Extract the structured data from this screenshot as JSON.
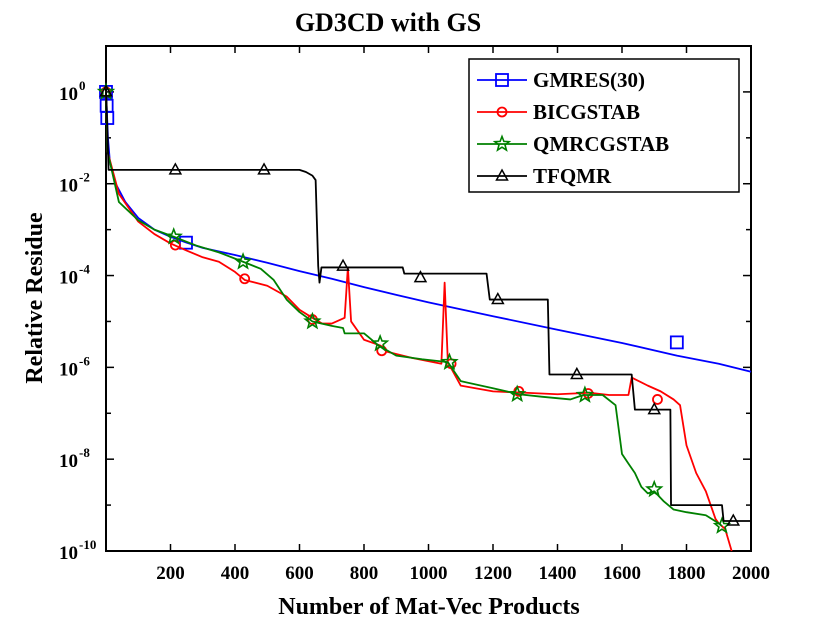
{
  "chart_data": {
    "type": "line",
    "title": "GD3CD with GS",
    "xlabel": "Number of Mat-Vec Products",
    "ylabel": "Relative Residue",
    "xlim": [
      0,
      2000
    ],
    "ylim_log10": [
      -10,
      1
    ],
    "y_scale": "log",
    "grid": false,
    "legend_position": "top-right",
    "x_ticks": [
      200,
      400,
      600,
      800,
      1000,
      1200,
      1400,
      1600,
      1800,
      2000
    ],
    "x_tick_labels": [
      "200",
      "400",
      "600",
      "800",
      "1000",
      "1200",
      "1400",
      "1600",
      "1800",
      "2000"
    ],
    "y_ticks": [
      {
        "base": "10",
        "exp": "0",
        "value": 1
      },
      {
        "base": "10",
        "exp": "-2",
        "value": 0.01
      },
      {
        "base": "10",
        "exp": "-4",
        "value": 0.0001
      },
      {
        "base": "10",
        "exp": "-6",
        "value": 1e-06
      },
      {
        "base": "10",
        "exp": "-8",
        "value": 1e-08
      },
      {
        "base": "10",
        "exp": "-10",
        "value": 1e-10
      }
    ],
    "series": [
      {
        "name": "GMRES(30)",
        "color": "#0000ff",
        "marker": "square",
        "points": [
          [
            0,
            1
          ],
          [
            2,
            0.5
          ],
          [
            6,
            0.1
          ],
          [
            12,
            0.03
          ],
          [
            30,
            0.01
          ],
          [
            60,
            0.004
          ],
          [
            100,
            0.0018
          ],
          [
            150,
            0.001
          ],
          [
            200,
            0.0007
          ],
          [
            250,
            0.00052
          ],
          [
            300,
            0.0004
          ],
          [
            400,
            0.00028
          ],
          [
            500,
            0.00019
          ],
          [
            600,
            0.000125
          ],
          [
            700,
            8.5e-05
          ],
          [
            800,
            5.6e-05
          ],
          [
            900,
            3.8e-05
          ],
          [
            1000,
            2.6e-05
          ],
          [
            1200,
            1.3e-05
          ],
          [
            1400,
            6.6e-06
          ],
          [
            1600,
            3.4e-06
          ],
          [
            1770,
            1.8e-06
          ],
          [
            1900,
            1.2e-06
          ],
          [
            2000,
            8e-07
          ]
        ],
        "markers": [
          [
            0,
            1
          ],
          [
            2,
            0.5
          ],
          [
            4,
            0.27
          ],
          [
            248,
            0.00052
          ],
          [
            1770,
            3.5e-06
          ]
        ]
      },
      {
        "name": "BICGSTAB",
        "color": "#ff0000",
        "marker": "circle",
        "points": [
          [
            0,
            1
          ],
          [
            5,
            0.05
          ],
          [
            40,
            0.006
          ],
          [
            100,
            0.0015
          ],
          [
            150,
            0.0008
          ],
          [
            200,
            0.0005
          ],
          [
            250,
            0.00035
          ],
          [
            300,
            0.00025
          ],
          [
            350,
            0.0002
          ],
          [
            400,
            0.00012
          ],
          [
            430,
            8e-05
          ],
          [
            500,
            6e-05
          ],
          [
            560,
            3.5e-05
          ],
          [
            600,
            1.8e-05
          ],
          [
            640,
            1.2e-05
          ],
          [
            670,
            9e-06
          ],
          [
            700,
            9e-06
          ],
          [
            740,
            1.2e-05
          ],
          [
            750,
            0.00015
          ],
          [
            760,
            1e-05
          ],
          [
            800,
            4e-06
          ],
          [
            850,
            3e-06
          ],
          [
            870,
            2.2e-06
          ],
          [
            950,
            1.6e-06
          ],
          [
            1040,
            1.2e-06
          ],
          [
            1050,
            7e-05
          ],
          [
            1060,
            1.3e-06
          ],
          [
            1100,
            4e-07
          ],
          [
            1200,
            3e-07
          ],
          [
            1300,
            2.8e-07
          ],
          [
            1400,
            2.6e-07
          ],
          [
            1500,
            2.8e-07
          ],
          [
            1560,
            2.5e-07
          ],
          [
            1620,
            2.5e-07
          ],
          [
            1630,
            6e-07
          ],
          [
            1680,
            4e-07
          ],
          [
            1720,
            3e-07
          ],
          [
            1760,
            2e-07
          ],
          [
            1780,
            1.5e-07
          ],
          [
            1800,
            2e-08
          ],
          [
            1830,
            5e-09
          ],
          [
            1860,
            2e-09
          ],
          [
            1890,
            5e-10
          ],
          [
            1900,
            4e-10
          ],
          [
            1920,
            3e-10
          ],
          [
            1940,
            1e-10
          ]
        ],
        "markers": [
          [
            0,
            1
          ],
          [
            215,
            0.00046
          ],
          [
            430,
            8.5e-05
          ],
          [
            640,
            1.1e-05
          ],
          [
            855,
            2.3e-06
          ],
          [
            1070,
            1.2e-06
          ],
          [
            1280,
            3e-07
          ],
          [
            1495,
            2.7e-07
          ],
          [
            1710,
            2e-07
          ]
        ]
      },
      {
        "name": "QMRCGSTAB",
        "color": "#008000",
        "marker": "star",
        "points": [
          [
            0,
            1
          ],
          [
            5,
            0.05
          ],
          [
            40,
            0.004
          ],
          [
            100,
            0.0016
          ],
          [
            150,
            0.001
          ],
          [
            210,
            0.0007
          ],
          [
            280,
            0.00045
          ],
          [
            350,
            0.00032
          ],
          [
            425,
            0.0002
          ],
          [
            480,
            0.00014
          ],
          [
            520,
            8e-05
          ],
          [
            560,
            3e-05
          ],
          [
            600,
            1.6e-05
          ],
          [
            640,
            1e-05
          ],
          [
            700,
            8e-06
          ],
          [
            735,
            7.2e-06
          ],
          [
            740,
            5.5e-06
          ],
          [
            800,
            5.5e-06
          ],
          [
            845,
            3e-06
          ],
          [
            900,
            1.8e-06
          ],
          [
            980,
            1.5e-06
          ],
          [
            1060,
            1.3e-06
          ],
          [
            1100,
            5e-07
          ],
          [
            1200,
            3.5e-07
          ],
          [
            1280,
            2.6e-07
          ],
          [
            1350,
            2.3e-07
          ],
          [
            1440,
            2e-07
          ],
          [
            1480,
            2.5e-07
          ],
          [
            1540,
            2.5e-07
          ],
          [
            1580,
            1.5e-07
          ],
          [
            1600,
            1.3e-08
          ],
          [
            1620,
            8e-09
          ],
          [
            1640,
            5e-09
          ],
          [
            1660,
            2.5e-09
          ],
          [
            1680,
            1.8e-09
          ],
          [
            1700,
            2e-09
          ],
          [
            1730,
            1.2e-09
          ],
          [
            1760,
            8e-10
          ],
          [
            1800,
            7e-10
          ],
          [
            1860,
            6e-10
          ],
          [
            1900,
            4e-10
          ],
          [
            1910,
            3.5e-10
          ]
        ],
        "markers": [
          [
            0,
            1
          ],
          [
            210,
            0.0007
          ],
          [
            425,
            0.0002
          ],
          [
            640,
            1e-05
          ],
          [
            850,
            3.3e-06
          ],
          [
            1065,
            1.3e-06
          ],
          [
            1275,
            2.6e-07
          ],
          [
            1485,
            2.5e-07
          ],
          [
            1700,
            2.2e-09
          ],
          [
            1910,
            3.5e-10
          ]
        ]
      },
      {
        "name": "TFQMR",
        "color": "#000000",
        "marker": "triangle",
        "points": [
          [
            0,
            1
          ],
          [
            2,
            0.5
          ],
          [
            8,
            0.02
          ],
          [
            600,
            0.02
          ],
          [
            620,
            0.018
          ],
          [
            640,
            0.015
          ],
          [
            650,
            0.012
          ],
          [
            658,
            0.00016
          ],
          [
            662,
            7e-05
          ],
          [
            668,
            0.00015
          ],
          [
            920,
            0.00015
          ],
          [
            925,
            0.00011
          ],
          [
            1180,
            0.00011
          ],
          [
            1190,
            3e-05
          ],
          [
            1370,
            3e-05
          ],
          [
            1375,
            7e-07
          ],
          [
            1630,
            7e-07
          ],
          [
            1640,
            1.2e-07
          ],
          [
            1750,
            1.2e-07
          ],
          [
            1752,
            1e-09
          ],
          [
            1910,
            1e-09
          ],
          [
            1915,
            4.5e-10
          ],
          [
            2000,
            4.5e-10
          ]
        ],
        "markers": [
          [
            0,
            1
          ],
          [
            215,
            0.02
          ],
          [
            490,
            0.02
          ],
          [
            735,
            0.00016
          ],
          [
            975,
            9e-05
          ],
          [
            1215,
            3e-05
          ],
          [
            1460,
            7e-07
          ],
          [
            1700,
            1.2e-07
          ],
          [
            1945,
            4.5e-10
          ]
        ]
      }
    ]
  }
}
